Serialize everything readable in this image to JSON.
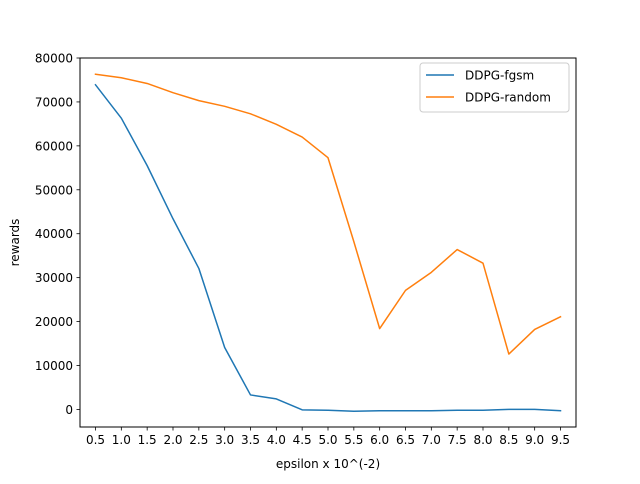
{
  "chart_data": {
    "type": "line",
    "title": "",
    "xlabel": "epsilon x 10^(-2)",
    "ylabel": "rewards",
    "categories": [
      "0.5",
      "1.0",
      "1.5",
      "2.0",
      "2.5",
      "3.0",
      "3.5",
      "4.0",
      "4.5",
      "5.0",
      "5.5",
      "6.0",
      "6.5",
      "7.0",
      "7.5",
      "8.0",
      "8.5",
      "9.0",
      "9.5"
    ],
    "x": [
      0.5,
      1.0,
      1.5,
      2.0,
      2.5,
      3.0,
      3.5,
      4.0,
      4.5,
      5.0,
      5.5,
      6.0,
      6.5,
      7.0,
      7.5,
      8.0,
      8.5,
      9.0,
      9.5
    ],
    "yticks": [
      0,
      10000,
      20000,
      30000,
      40000,
      50000,
      60000,
      70000,
      80000
    ],
    "ylim": [
      -4000,
      80000
    ],
    "xlim": [
      0.2,
      9.8
    ],
    "grid": false,
    "legend": "top-right",
    "series": [
      {
        "name": "DDPG-fgsm",
        "color": "#1f77b4",
        "values": [
          73900,
          66300,
          55500,
          43400,
          32100,
          14100,
          3300,
          2400,
          -100,
          -200,
          -400,
          -300,
          -300,
          -300,
          -200,
          -200,
          0,
          0,
          -300
        ]
      },
      {
        "name": "DDPG-random",
        "color": "#ff7f0e",
        "values": [
          76300,
          75500,
          74200,
          72100,
          70300,
          69000,
          67300,
          64900,
          62000,
          57300,
          38200,
          18400,
          27100,
          31200,
          36400,
          33300,
          12600,
          18200,
          21100
        ]
      }
    ]
  }
}
